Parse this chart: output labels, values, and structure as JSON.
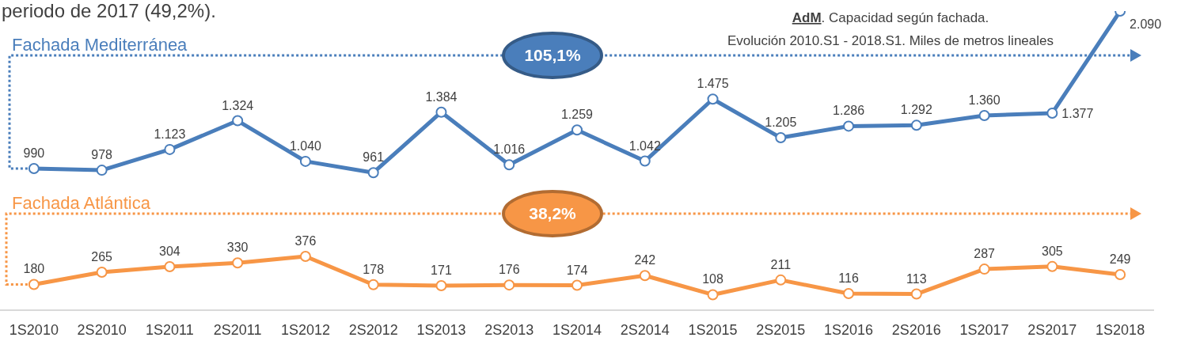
{
  "chart_data": {
    "type": "line",
    "title": "AdM. Capacidad según fachada.",
    "subtitle": "Evolución 2010.S1 - 2018.S1. Miles de metros lineales",
    "annotations": [
      "periodo de 2017 (49,2%).",
      "105,1%",
      "38,2%"
    ],
    "categories": [
      "1S2010",
      "2S2010",
      "1S2011",
      "2S2011",
      "1S2012",
      "2S2012",
      "1S2013",
      "2S2013",
      "1S2014",
      "2S2014",
      "1S2015",
      "2S2015",
      "1S2016",
      "2S2016",
      "1S2017",
      "2S2017",
      "1S2018"
    ],
    "series": [
      {
        "name": "Fachada Mediterránea",
        "color": "#4a7ebb",
        "values": [
          990,
          978,
          1123,
          1324,
          1040,
          961,
          1384,
          1016,
          1259,
          1042,
          1475,
          1205,
          1286,
          1292,
          1360,
          1377,
          2090
        ],
        "value_labels": [
          "990",
          "978",
          "1.123",
          "1.324",
          "1.040",
          "961",
          "1.384",
          "1.016",
          "1.259",
          "1.042",
          "1.475",
          "1.205",
          "1.286",
          "1.292",
          "1.360",
          "1.377",
          "2.090"
        ]
      },
      {
        "name": "Fachada Atlántica",
        "color": "#f79646",
        "values": [
          180,
          265,
          304,
          330,
          376,
          178,
          171,
          176,
          174,
          242,
          108,
          211,
          116,
          113,
          287,
          305,
          249
        ],
        "value_labels": [
          "180",
          "265",
          "304",
          "330",
          "376",
          "178",
          "171",
          "176",
          "174",
          "242",
          "108",
          "211",
          "116",
          "113",
          "287",
          "305",
          "249"
        ]
      }
    ],
    "marker": "circle",
    "tick_labels": "x"
  }
}
